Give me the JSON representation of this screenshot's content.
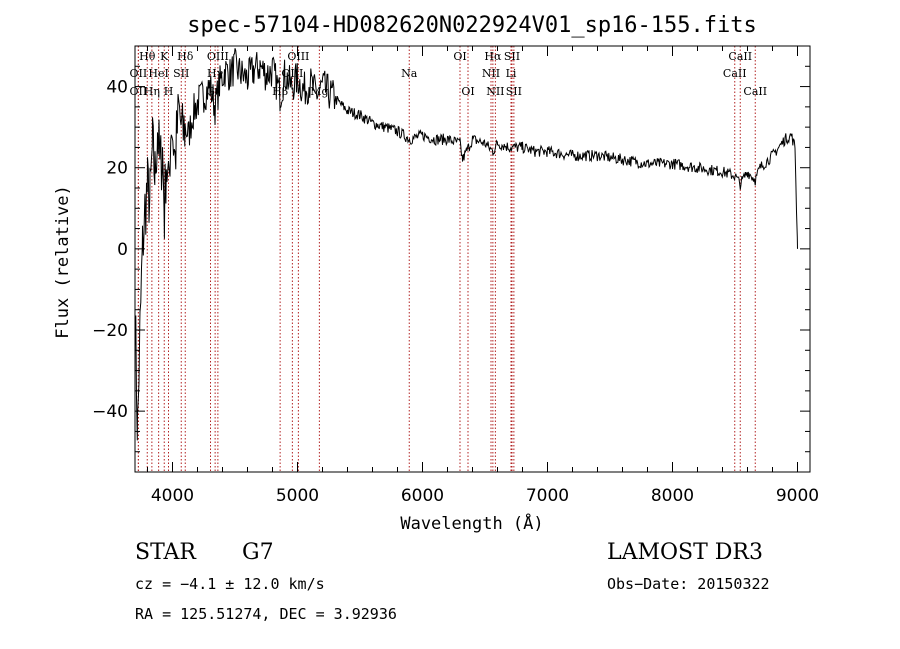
{
  "chart_data": {
    "type": "line",
    "title": "spec-57104-HD082620N022924V01_sp16-155.fits",
    "xlabel": "Wavelength (Å)",
    "ylabel": "Flux (relative)",
    "xlim": [
      3700,
      9100
    ],
    "ylim": [
      -55,
      50
    ],
    "xticks": [
      4000,
      5000,
      6000,
      7000,
      8000,
      9000
    ],
    "yticks": [
      -40,
      -20,
      0,
      20,
      40
    ],
    "series": [
      {
        "name": "spectrum",
        "x": [
          3700,
          3720,
          3740,
          3760,
          3780,
          3800,
          3820,
          3840,
          3860,
          3880,
          3900,
          3920,
          3935,
          3950,
          3968,
          3990,
          4020,
          4050,
          4080,
          4101,
          4130,
          4160,
          4200,
          4250,
          4300,
          4340,
          4380,
          4420,
          4460,
          4500,
          4550,
          4600,
          4650,
          4700,
          4750,
          4800,
          4861,
          4900,
          4950,
          5000,
          5050,
          5100,
          5150,
          5200,
          5300,
          5400,
          5500,
          5600,
          5700,
          5800,
          5900,
          6000,
          6100,
          6200,
          6300,
          6320,
          6400,
          6500,
          6563,
          6600,
          6700,
          6800,
          6900,
          7000,
          7200,
          7400,
          7600,
          7800,
          8000,
          8200,
          8400,
          8500,
          8542,
          8600,
          8662,
          8700,
          8800,
          8850,
          8900,
          8950,
          8980,
          9000
        ],
        "y": [
          -15,
          -45,
          -20,
          0,
          10,
          15,
          12,
          25,
          18,
          30,
          20,
          24,
          8,
          22,
          14,
          32,
          22,
          34,
          28,
          30,
          28,
          33,
          36,
          38,
          40,
          35,
          41,
          44,
          43,
          45,
          43,
          42,
          44,
          45,
          43,
          44,
          38,
          43,
          40,
          42,
          39,
          41,
          38,
          40,
          37,
          34,
          33,
          31,
          30,
          29,
          27,
          28,
          27,
          27,
          26,
          22,
          27,
          26,
          24,
          26,
          25,
          25,
          24,
          24,
          23,
          23,
          22,
          21,
          21,
          20,
          19,
          18,
          16,
          19,
          17,
          20,
          23,
          25,
          27,
          28,
          25,
          0
        ]
      }
    ],
    "spectral_lines": [
      {
        "name": "Hθ",
        "wl": 3798,
        "row": 1
      },
      {
        "name": "OII",
        "wl": 3727,
        "row": 2
      },
      {
        "name": "OII",
        "wl": 3727,
        "row": 3
      },
      {
        "name": "Hη",
        "wl": 3835,
        "row": 3
      },
      {
        "name": "HeI",
        "wl": 3889,
        "row": 2
      },
      {
        "name": "K",
        "wl": 3934,
        "row": 1
      },
      {
        "name": "H",
        "wl": 3968,
        "row": 3
      },
      {
        "name": "SII",
        "wl": 4070,
        "row": 2
      },
      {
        "name": "Hδ",
        "wl": 4102,
        "row": 1
      },
      {
        "name": "G",
        "wl": 4304,
        "row": 3
      },
      {
        "name": "Hγ",
        "wl": 4341,
        "row": 2
      },
      {
        "name": "OIII",
        "wl": 4363,
        "row": 1
      },
      {
        "name": "Hβ",
        "wl": 4861,
        "row": 3
      },
      {
        "name": "OIII",
        "wl": 4959,
        "row": 2
      },
      {
        "name": "OIII",
        "wl": 5007,
        "row": 1
      },
      {
        "name": "Mg",
        "wl": 5175,
        "row": 3
      },
      {
        "name": "Na",
        "wl": 5894,
        "row": 2
      },
      {
        "name": "OI",
        "wl": 6300,
        "row": 1
      },
      {
        "name": "OI",
        "wl": 6364,
        "row": 3
      },
      {
        "name": "NII",
        "wl": 6548,
        "row": 2
      },
      {
        "name": "Hα",
        "wl": 6563,
        "row": 1
      },
      {
        "name": "NII",
        "wl": 6583,
        "row": 3
      },
      {
        "name": "Li",
        "wl": 6708,
        "row": 2
      },
      {
        "name": "SII",
        "wl": 6716,
        "row": 1
      },
      {
        "name": "SII",
        "wl": 6731,
        "row": 3
      },
      {
        "name": "CaII",
        "wl": 8498,
        "row": 2
      },
      {
        "name": "CaII",
        "wl": 8542,
        "row": 1
      },
      {
        "name": "CaII",
        "wl": 8662,
        "row": 3
      }
    ]
  },
  "info": {
    "class_label": "STAR",
    "subclass_label": "G7",
    "survey": "LAMOST DR3",
    "redshift": "cz = −4.1 ± 12.0 km/s",
    "obs_date": "Obs−Date: 20150322",
    "coords": "RA = 125.51274, DEC =    3.92936"
  },
  "colors": {
    "line_marker": "#b22222",
    "spectrum": "#000000"
  }
}
